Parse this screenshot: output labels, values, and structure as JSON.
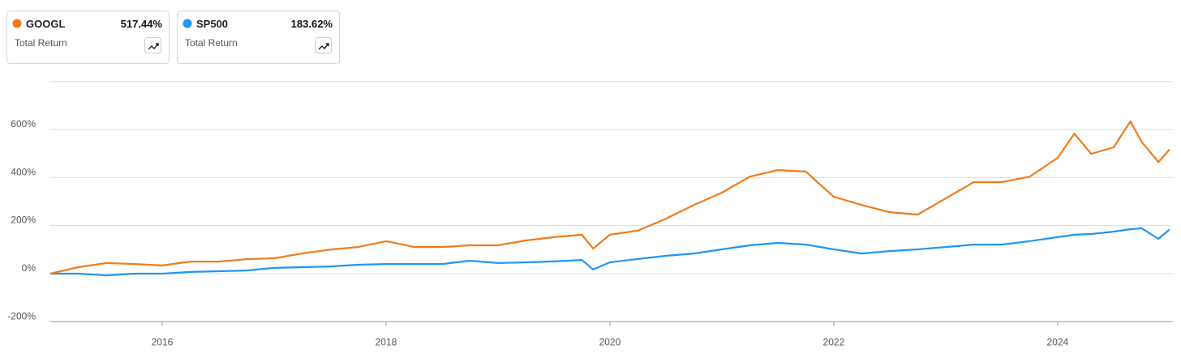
{
  "chart_data": {
    "type": "line",
    "x": [
      2015.0,
      2015.25,
      2015.5,
      2015.75,
      2016.0,
      2016.25,
      2016.5,
      2016.75,
      2017.0,
      2017.25,
      2017.5,
      2017.75,
      2018.0,
      2018.25,
      2018.5,
      2018.75,
      2019.0,
      2019.25,
      2019.5,
      2019.75,
      2019.85,
      2020.0,
      2020.25,
      2020.5,
      2020.75,
      2021.0,
      2021.25,
      2021.5,
      2021.75,
      2022.0,
      2022.25,
      2022.5,
      2022.75,
      2023.0,
      2023.25,
      2023.5,
      2023.75,
      2024.0,
      2024.15,
      2024.3,
      2024.5,
      2024.65,
      2024.75,
      2024.9,
      2025.0
    ],
    "series": [
      {
        "name": "GOOGL",
        "color": "#f07c1c",
        "total_return": "517.44%",
        "caption": "Total Return",
        "values": [
          0,
          27,
          44,
          40,
          34,
          50,
          50,
          60,
          64,
          84,
          100,
          111,
          135,
          111,
          111,
          118,
          118,
          138,
          152,
          162,
          104,
          162,
          179,
          229,
          286,
          337,
          404,
          431,
          425,
          320,
          286,
          256,
          246,
          313,
          381,
          381,
          404,
          482,
          583,
          499,
          526,
          634,
          549,
          465,
          517
        ]
      },
      {
        "name": "SP500",
        "color": "#2196f3",
        "total_return": "183.62%",
        "caption": "Total Return",
        "values": [
          0,
          0,
          -7,
          0,
          0,
          7,
          10,
          13,
          24,
          27,
          30,
          37,
          40,
          40,
          40,
          54,
          44,
          47,
          51,
          57,
          17,
          47,
          61,
          74,
          84,
          101,
          118,
          128,
          121,
          101,
          84,
          94,
          101,
          111,
          121,
          121,
          135,
          152,
          162,
          165,
          175,
          185,
          189,
          145,
          184
        ]
      }
    ],
    "xlim": [
      2015.0,
      2025.03
    ],
    "xticks": [
      2016,
      2018,
      2020,
      2022,
      2024
    ],
    "ylim": [
      -200,
      800
    ],
    "yticks": [
      {
        "value": -200,
        "label": "-200%"
      },
      {
        "value": 0,
        "label": "0%"
      },
      {
        "value": 200,
        "label": "200%"
      },
      {
        "value": 400,
        "label": "400%"
      },
      {
        "value": 600,
        "label": "600%"
      }
    ],
    "grid": true
  }
}
